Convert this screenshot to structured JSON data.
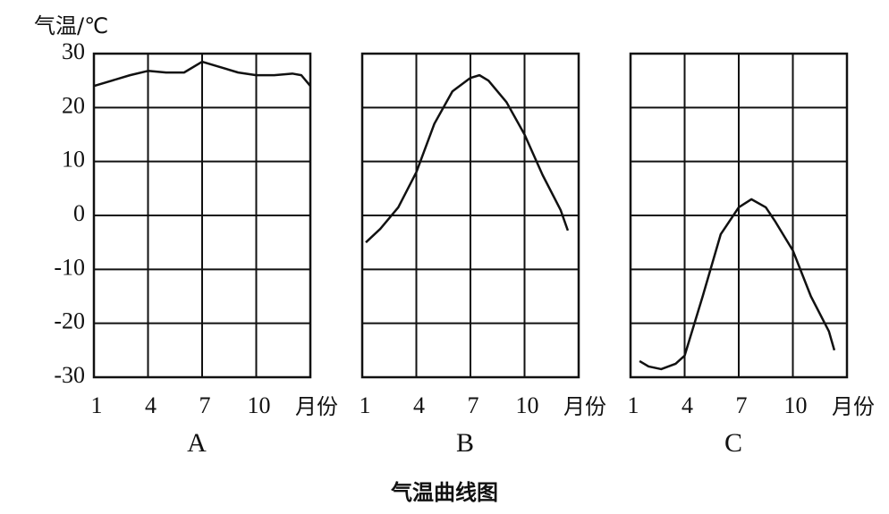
{
  "caption": "气温曲线图",
  "chart_data": [
    {
      "type": "line",
      "title": "A",
      "ylabel": "气温/℃",
      "xlabel": "月份",
      "show_ytick_labels": true,
      "xlim": [
        1,
        13
      ],
      "xticks": [
        1,
        4,
        7,
        10
      ],
      "ylim": [
        -30,
        30
      ],
      "yticks": [
        -30,
        -20,
        -10,
        0,
        10,
        20,
        30
      ],
      "grid": true,
      "series": [
        {
          "color": "#111111",
          "x": [
            1,
            2,
            3,
            4,
            5,
            6,
            7,
            8,
            9,
            10,
            11,
            12,
            12.5,
            13
          ],
          "values": [
            24,
            25,
            26,
            26.8,
            26.5,
            26.5,
            28.5,
            27.5,
            26.5,
            26,
            26,
            26.3,
            26,
            24
          ]
        }
      ]
    },
    {
      "type": "line",
      "title": "B",
      "xlabel": "月份",
      "show_ytick_labels": false,
      "xlim": [
        1,
        13
      ],
      "xticks": [
        1,
        4,
        7,
        10
      ],
      "ylim": [
        -30,
        30
      ],
      "yticks": [
        -30,
        -20,
        -10,
        0,
        10,
        20,
        30
      ],
      "grid": true,
      "series": [
        {
          "color": "#111111",
          "x": [
            1.2,
            2,
            3,
            4,
            5,
            6,
            7,
            7.5,
            8,
            9,
            10,
            11,
            12,
            12.4
          ],
          "values": [
            -5,
            -2.5,
            1.5,
            8,
            17,
            23,
            25.5,
            26,
            25,
            21,
            15,
            7.5,
            1,
            -2.8
          ]
        }
      ]
    },
    {
      "type": "line",
      "title": "C",
      "xlabel": "月份",
      "show_ytick_labels": false,
      "xlim": [
        1,
        13
      ],
      "xticks": [
        1,
        4,
        7,
        10
      ],
      "ylim": [
        -30,
        30
      ],
      "yticks": [
        -30,
        -20,
        -10,
        0,
        10,
        20,
        30
      ],
      "grid": true,
      "series": [
        {
          "color": "#111111",
          "x": [
            1.5,
            2,
            2.7,
            3.5,
            4,
            5,
            6,
            7,
            7.7,
            8.5,
            9,
            10,
            11,
            12,
            12.3
          ],
          "values": [
            -27,
            -28,
            -28.5,
            -27.5,
            -26,
            -15,
            -3.5,
            1.5,
            3,
            1.5,
            -1,
            -6.5,
            -15,
            -21.5,
            -25
          ]
        }
      ]
    }
  ]
}
